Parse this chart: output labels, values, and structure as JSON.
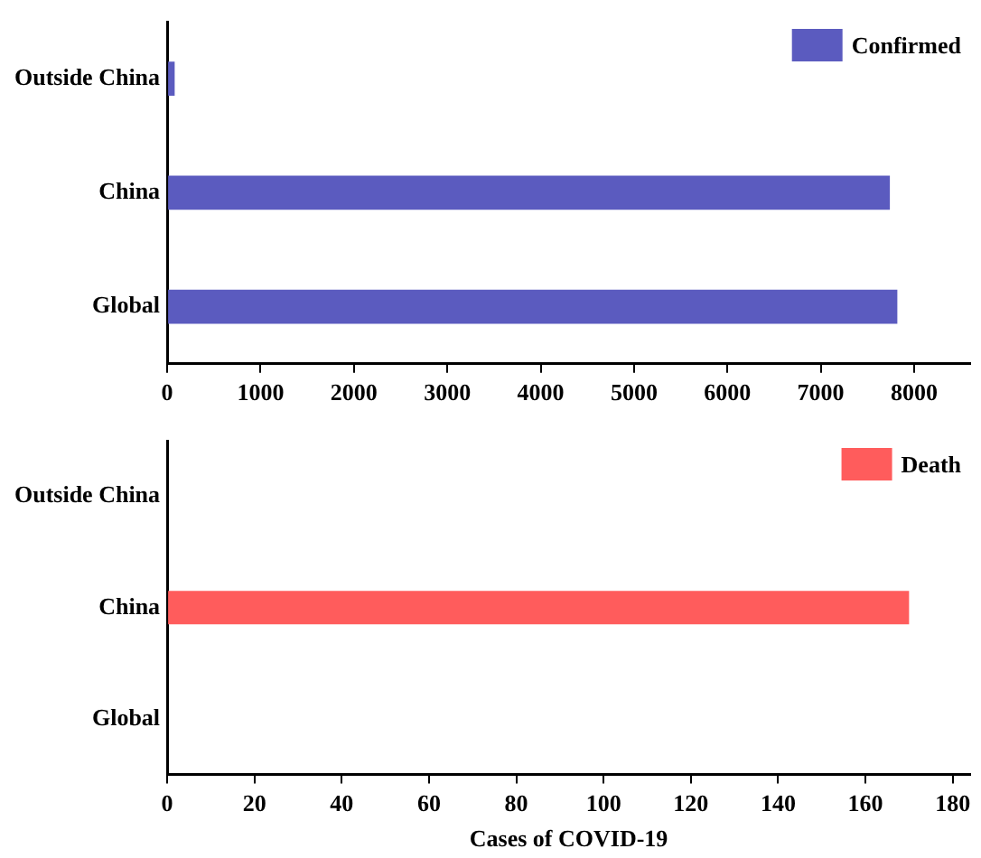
{
  "chart_data": [
    {
      "type": "bar",
      "orientation": "horizontal",
      "categories": [
        "Outside China",
        "China",
        "Global"
      ],
      "series": [
        {
          "name": "Confirmed",
          "color": "#5b5bbf",
          "values": [
            80,
            7740,
            7820
          ]
        }
      ],
      "xlim": [
        0,
        8600
      ],
      "xticks": [
        0,
        1000,
        2000,
        3000,
        4000,
        5000,
        6000,
        7000,
        8000
      ],
      "grid": false,
      "legend": "top right"
    },
    {
      "type": "bar",
      "orientation": "horizontal",
      "categories": [
        "Outside China",
        "China",
        "Global"
      ],
      "series": [
        {
          "name": "Death",
          "color": "#ff5c5c",
          "values": [
            0,
            170,
            0
          ]
        }
      ],
      "xlim": [
        0,
        184
      ],
      "xticks": [
        0,
        20,
        40,
        60,
        80,
        100,
        120,
        140,
        160,
        180
      ],
      "xlabel": "Cases of COVID-19",
      "grid": false,
      "legend": "top right"
    }
  ]
}
